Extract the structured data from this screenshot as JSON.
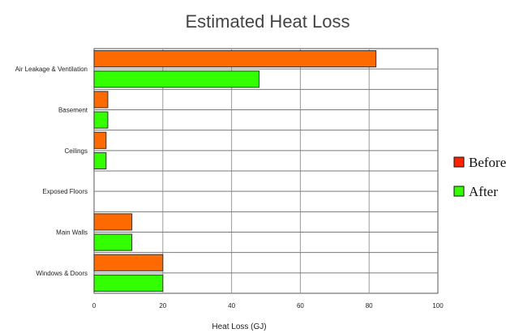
{
  "chart_data": {
    "type": "bar",
    "orientation": "horizontal",
    "title": "Estimated Heat Loss",
    "xlabel": "Heat Loss (GJ)",
    "ylabel": "",
    "xlim": [
      0,
      100
    ],
    "xticks": [
      0,
      20,
      40,
      60,
      80,
      100
    ],
    "grid": true,
    "legend_position": "right",
    "categories": [
      "Air Leakage & Ventilation",
      "Basement",
      "Ceilings",
      "Exposed Floors",
      "Main Walls",
      "Windows & Doors"
    ],
    "series": [
      {
        "name": "Before",
        "color": "#ff6a00",
        "values": [
          82,
          4,
          3.5,
          0,
          11,
          20
        ]
      },
      {
        "name": "After",
        "color": "#33ff00",
        "values": [
          48,
          4,
          3.5,
          0,
          11,
          20
        ]
      }
    ]
  }
}
